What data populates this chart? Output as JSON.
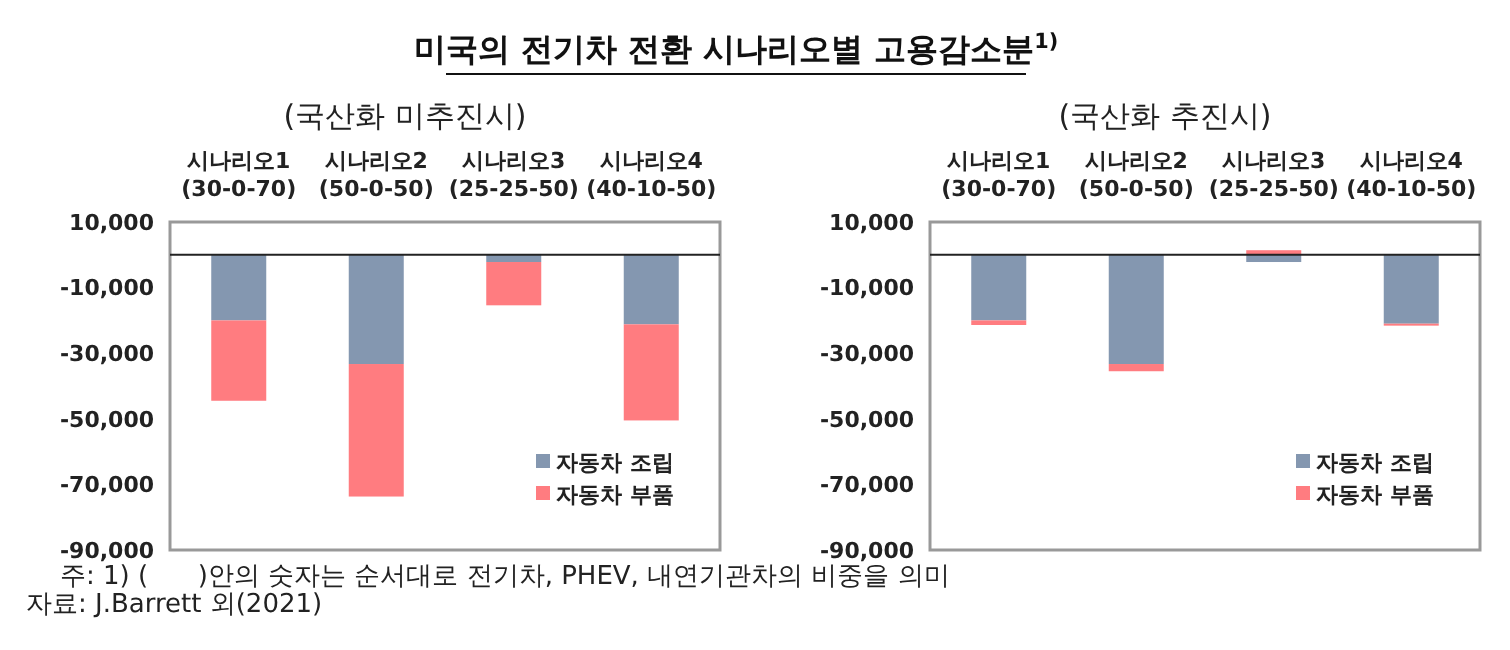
{
  "chart_data": [
    {
      "type": "bar",
      "title": "미국의 전기차 전환 시나리오별 고용감소분$^{1)}$",
      "subtitle": "(국산화 미추진시)",
      "categories": [
        "시나리오1\n(30-0-70)",
        "시나리오2\n(50-0-50)",
        "시나리오3\n(25-25-50)",
        "시나리오4\n(40-10-50)"
      ],
      "stacked": true,
      "series": [
        {
          "name": "자동차 조립",
          "color": "#8497b0",
          "values": [
            -20000,
            -33300,
            -2200,
            -21200
          ]
        },
        {
          "name": "자동차 부품",
          "color": "#ff7c80",
          "values": [
            -24500,
            -40400,
            -13200,
            -29300
          ]
        }
      ],
      "ylim": [
        -90000,
        10000
      ],
      "yticks": [
        {
          "value": 10000,
          "label": "10,000"
        },
        {
          "value": -10000,
          "label": "-10,000"
        },
        {
          "value": -30000,
          "label": "-30,000"
        },
        {
          "value": -50000,
          "label": "-50,000"
        },
        {
          "value": -70000,
          "label": "-70,000"
        },
        {
          "value": -90000,
          "label": "-90,000"
        }
      ],
      "legend": "bottom right",
      "grid": false,
      "annotations": [
        "주: 1) (      )안의 숫자는 순서대로 전기차, PHEV, 내연기관차의 비중을 의미",
        "자료: J.Barrett 외(2021)"
      ]
    },
    {
      "type": "bar",
      "subtitle": "(국산화 추진시)",
      "categories": [
        "시나리오1\n(30-0-70)",
        "시나리오2\n(50-0-50)",
        "시나리오3\n(25-25-50)",
        "시나리오4\n(40-10-50)"
      ],
      "stacked": true,
      "series": [
        {
          "name": "자동차 조립",
          "color": "#8497b0",
          "values": [
            -20000,
            -33300,
            -2200,
            -21000
          ]
        },
        {
          "name": "자동차 부품",
          "color": "#ff7c80",
          "values": [
            -1400,
            -2200,
            1400,
            -600
          ]
        }
      ],
      "ylim": [
        -90000,
        10000
      ],
      "yticks": [
        {
          "value": 10000,
          "label": "10,000"
        },
        {
          "value": -10000,
          "label": "-10,000"
        },
        {
          "value": -30000,
          "label": "-30,000"
        },
        {
          "value": -50000,
          "label": "-50,000"
        },
        {
          "value": -70000,
          "label": "-70,000"
        },
        {
          "value": -90000,
          "label": "-90,000"
        }
      ],
      "legend": "bottom right",
      "grid": false
    }
  ]
}
